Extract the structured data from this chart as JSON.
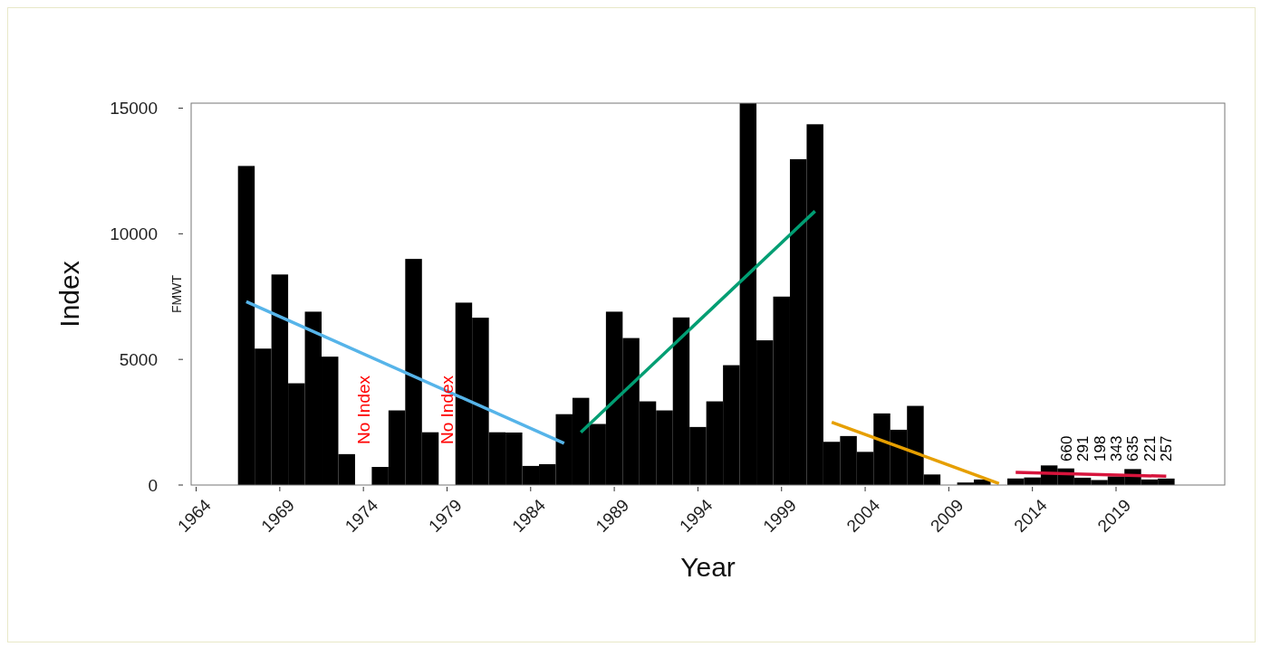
{
  "chart_data": {
    "type": "bar",
    "xlabel": "Year",
    "ylabel": "Index",
    "annotations": [
      "FMWT",
      "No Index",
      "No Index"
    ],
    "x": [
      1967,
      1968,
      1969,
      1970,
      1971,
      1972,
      1973,
      1974,
      1975,
      1976,
      1977,
      1978,
      1979,
      1980,
      1981,
      1982,
      1983,
      1984,
      1985,
      1986,
      1987,
      1988,
      1989,
      1990,
      1991,
      1992,
      1993,
      1994,
      1995,
      1996,
      1997,
      1998,
      1999,
      2000,
      2001,
      2002,
      2003,
      2004,
      2005,
      2006,
      2007,
      2008,
      2009,
      2010,
      2011,
      2012,
      2013,
      2014,
      2015,
      2016,
      2017,
      2018,
      2019,
      2020,
      2021,
      2022
    ],
    "xlim": [
      1963.7,
      2025.5
    ],
    "xticks": [
      1964,
      1969,
      1974,
      1979,
      1984,
      1989,
      1994,
      1999,
      2004,
      2009,
      2014,
      2019
    ],
    "ylim": [
      0,
      15200
    ],
    "yticks": [
      0,
      5000,
      10000,
      15000
    ],
    "series": [
      {
        "color": "#000000",
        "values": [
          12700,
          5430,
          8380,
          4050,
          6900,
          5110,
          1230,
          null,
          720,
          2970,
          9000,
          2100,
          null,
          7260,
          6660,
          2100,
          2090,
          760,
          830,
          2820,
          3470,
          2430,
          6900,
          5850,
          3330,
          2970,
          6670,
          2310,
          3330,
          4770,
          15200,
          5760,
          7500,
          12970,
          14360,
          1720,
          1950,
          1320,
          2850,
          2200,
          3150,
          420,
          null,
          100,
          220,
          null,
          260,
          300,
          780,
          660,
          291,
          198,
          343,
          635,
          221,
          257
        ],
        "value_labels": [
          null,
          null,
          null,
          null,
          null,
          null,
          null,
          null,
          null,
          null,
          null,
          null,
          null,
          null,
          null,
          null,
          null,
          null,
          null,
          null,
          null,
          null,
          null,
          null,
          null,
          null,
          null,
          null,
          null,
          null,
          null,
          null,
          null,
          null,
          null,
          null,
          null,
          null,
          null,
          null,
          null,
          null,
          null,
          null,
          null,
          null,
          null,
          null,
          null,
          "660",
          "291",
          "198",
          "343",
          "635",
          "221",
          "257"
        ]
      },
      {
        "type": "line",
        "color": "#56b4e9",
        "x": [
          1967,
          1986
        ],
        "values": [
          7300,
          1660
        ]
      },
      {
        "type": "line",
        "color": "#009e73",
        "x": [
          1987,
          2001
        ],
        "values": [
          2100,
          10900
        ]
      },
      {
        "type": "line",
        "color": "#e69f00",
        "x": [
          2002,
          2012
        ],
        "values": [
          2500,
          60
        ]
      },
      {
        "type": "line",
        "color": "#d7143c",
        "x": [
          2013,
          2022
        ],
        "values": [
          500,
          350
        ]
      }
    ],
    "marker": "none",
    "line_style": "solid",
    "grid": false
  }
}
